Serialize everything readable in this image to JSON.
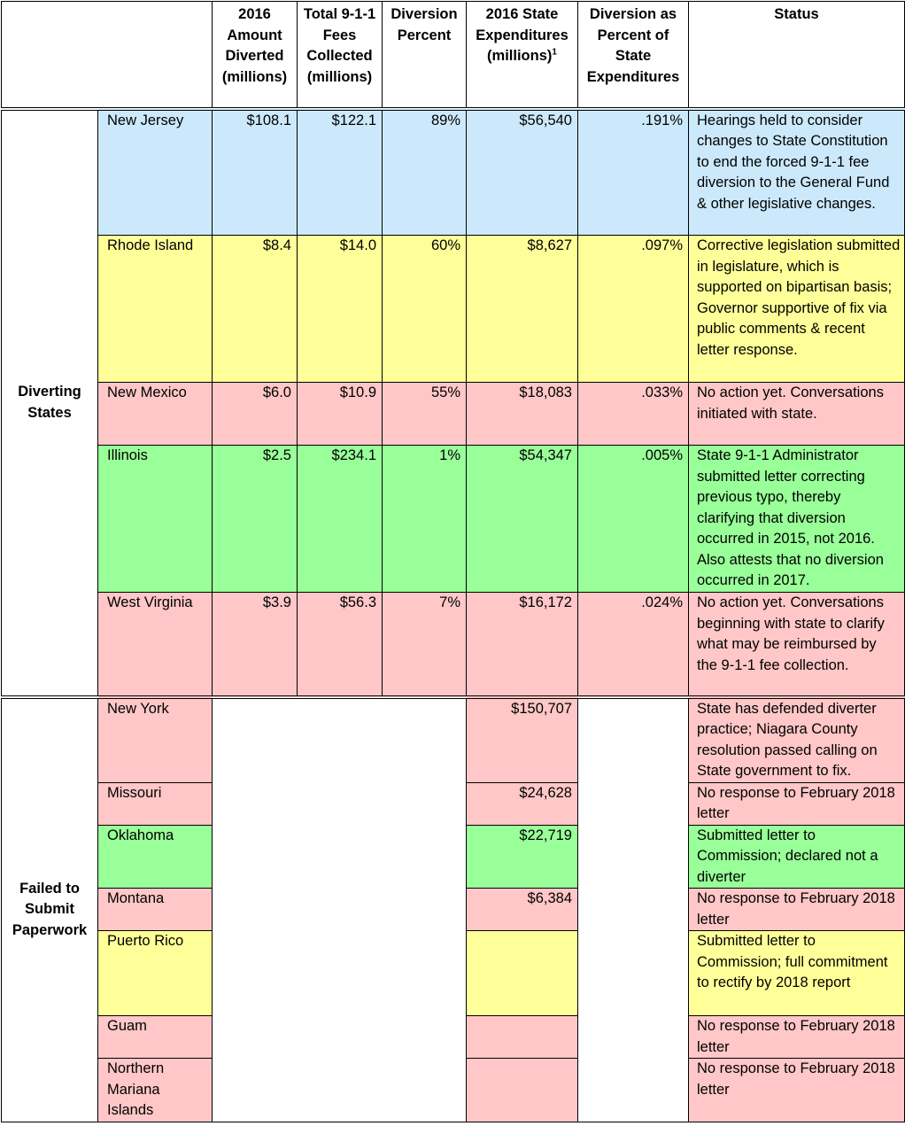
{
  "header": {
    "amount_diverted": "2016 Amount Diverted (millions)",
    "total_fees": "Total 9-1-1 Fees Collected (millions)",
    "diversion_percent": "Diversion Percent",
    "state_expenditures": "2016 State Expenditures (millions)",
    "state_expenditures_footnote": "1",
    "diversion_pct_expend": "Diversion as Percent of State Expenditures",
    "status": "Status"
  },
  "diverting": {
    "group_label": "Diverting States",
    "rows": [
      {
        "state": "New Jersey",
        "amount": "$108.1",
        "total": "$122.1",
        "percent": "89%",
        "expenditures": "$56,540",
        "pct_expend": ".191%",
        "status": "Hearings held to consider changes to State Constitution to end the forced 9-1-1 fee diversion to the General Fund & other legislative changes.",
        "color": "#cce9fb"
      },
      {
        "state": "Rhode Island",
        "amount": "$8.4",
        "total": "$14.0",
        "percent": "60%",
        "expenditures": "$8,627",
        "pct_expend": ".097%",
        "status": "Corrective legislation submitted in legislature, which is supported on bipartisan basis; Governor supportive of fix via public comments & recent letter response.",
        "color": "#ffff99"
      },
      {
        "state": "New Mexico",
        "amount": "$6.0",
        "total": "$10.9",
        "percent": "55%",
        "expenditures": "$18,083",
        "pct_expend": ".033%",
        "status": "No action yet. Conversations initiated with state.",
        "color": "#ffc7c7"
      },
      {
        "state": "Illinois",
        "amount": "$2.5",
        "total": "$234.1",
        "percent": "1%",
        "expenditures": "$54,347",
        "pct_expend": ".005%",
        "status": "State 9-1-1 Administrator submitted letter correcting previous typo, thereby clarifying that diversion occurred in 2015, not 2016. Also attests that no diversion occurred in 2017.",
        "color": "#99ff99"
      },
      {
        "state": "West Virginia",
        "amount": "$3.9",
        "total": "$56.3",
        "percent": "7%",
        "expenditures": "$16,172",
        "pct_expend": ".024%",
        "status": "No action yet. Conversations beginning with state to clarify what may be reimbursed by the 9-1-1 fee collection.",
        "color": "#ffc7c7"
      }
    ]
  },
  "failed": {
    "group_label": "Failed to Submit Paperwork",
    "rows": [
      {
        "state": "New York",
        "expenditures": "$150,707",
        "status": "State has defended diverter practice; Niagara County resolution passed calling on State government to fix.",
        "color": "#ffc7c7"
      },
      {
        "state": "Missouri",
        "expenditures": "$24,628",
        "status": "No response to February 2018 letter",
        "color": "#ffc7c7"
      },
      {
        "state": "Oklahoma",
        "expenditures": "$22,719",
        "status": "Submitted letter to Commission; declared not a diverter",
        "color": "#99ff99"
      },
      {
        "state": "Montana",
        "expenditures": "$6,384",
        "status": "No response to February 2018 letter",
        "color": "#ffc7c7"
      },
      {
        "state": "Puerto Rico",
        "expenditures": "",
        "status": "Submitted letter to Commission; full commitment to rectify by 2018 report",
        "color": "#ffff99"
      },
      {
        "state": "Guam",
        "expenditures": "",
        "status": "No response to February 2018 letter",
        "color": "#ffc7c7"
      },
      {
        "state": "Northern Mariana Islands",
        "expenditures": "",
        "status": "No response to February 2018 letter",
        "color": "#ffc7c7"
      }
    ]
  }
}
